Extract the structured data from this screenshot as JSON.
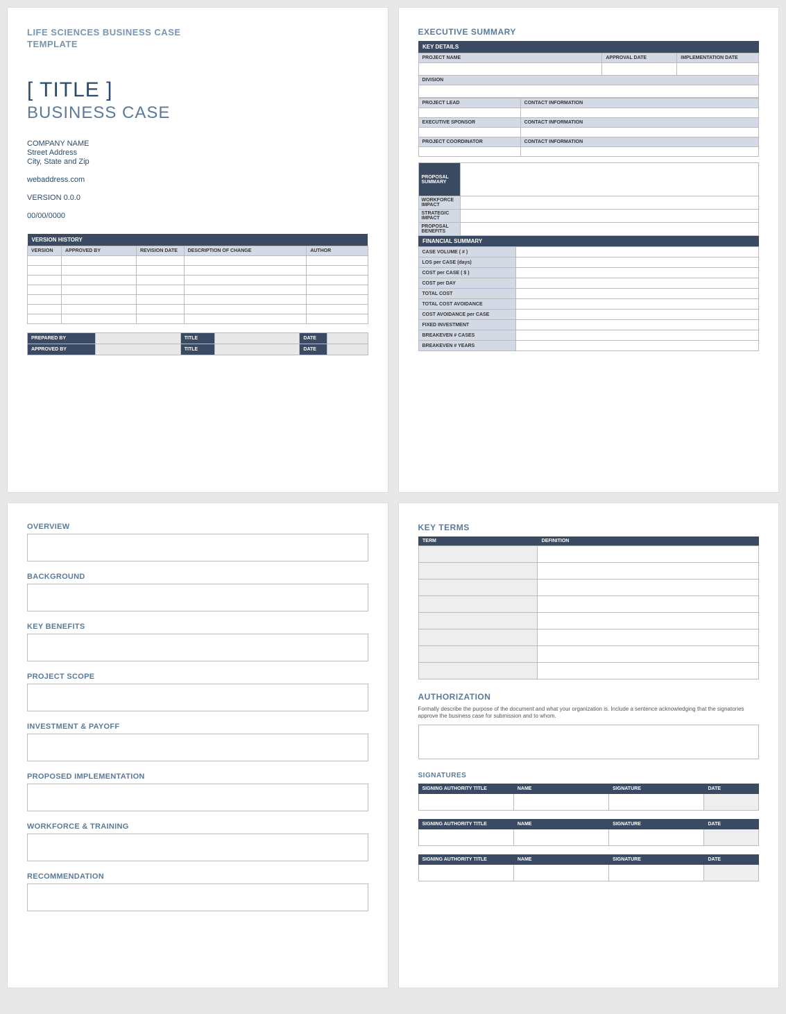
{
  "colors": {
    "header_dark": "#3a4a63",
    "header_light": "#d3dae6",
    "accent_text": "#5a7a99",
    "title_text": "#294a6b",
    "border": "#bbbbbb",
    "page_bg": "#ffffff",
    "body_bg": "#e8e8e8",
    "gray_fill": "#eeeeee"
  },
  "page1": {
    "doc_type_line1": "LIFE SCIENCES BUSINESS CASE",
    "doc_type_line2": "TEMPLATE",
    "title": "[ TITLE ]",
    "subtitle": "BUSINESS CASE",
    "company": "COMPANY NAME",
    "street": "Street Address",
    "city": "City, State and Zip",
    "web": "webaddress.com",
    "version": "VERSION 0.0.0",
    "date": "00/00/0000",
    "vh_title": "VERSION HISTORY",
    "vh_cols": {
      "c1": "VERSION",
      "c2": "APPROVED BY",
      "c3": "REVISION DATE",
      "c4": "DESCRIPTION OF CHANGE",
      "c5": "AUTHOR"
    },
    "vh_row_count": 7,
    "sign": {
      "prepared": "PREPARED BY",
      "approved": "APPROVED BY",
      "title": "TITLE",
      "date": "DATE"
    }
  },
  "page2": {
    "title": "EXECUTIVE SUMMARY",
    "key_details": "KEY DETAILS",
    "row1": {
      "project_name": "PROJECT NAME",
      "approval_date": "APPROVAL DATE",
      "impl_date": "IMPLEMENTATION DATE"
    },
    "division": "DIVISION",
    "lead": "PROJECT LEAD",
    "sponsor": "EXECUTIVE SPONSOR",
    "coord": "PROJECT COORDINATOR",
    "contact": "CONTACT INFORMATION",
    "proposal": {
      "summary": "PROPOSAL SUMMARY",
      "workforce": "WORKFORCE IMPACT",
      "strategic": "STRATEGIC IMPACT",
      "benefits": "PROPOSAL BENEFITS"
    },
    "fin_title": "FINANCIAL SUMMARY",
    "fin_rows": [
      "CASE VOLUME ( # )",
      "LOS per CASE (days)",
      "COST per CASE ( $ )",
      "COST per DAY",
      "TOTAL COST",
      "TOTAL COST AVOIDANCE",
      "COST AVOIDANCE per CASE",
      "FIXED INVESTMENT",
      "BREAKEVEN # CASES",
      "BREAKEVEN # YEARS"
    ]
  },
  "page3": {
    "sections": [
      "OVERVIEW",
      "BACKGROUND",
      "KEY BENEFITS",
      "PROJECT SCOPE",
      "INVESTMENT & PAYOFF",
      "PROPOSED IMPLEMENTATION",
      "WORKFORCE & TRAINING",
      "RECOMMENDATION"
    ]
  },
  "page4": {
    "key_terms_title": "KEY TERMS",
    "kt_cols": {
      "term": "TERM",
      "def": "DEFINITION"
    },
    "kt_row_count": 8,
    "auth_title": "AUTHORIZATION",
    "auth_desc": "Formally describe the purpose of the document and what your organization is. Include a sentence acknowledging that the signatories approve the business case for submission and to whom.",
    "sig_title": "SIGNATURES",
    "sig_cols": {
      "c1": "SIGNING AUTHORITY TITLE",
      "c2": "NAME",
      "c3": "SIGNATURE",
      "c4": "DATE"
    },
    "sig_block_count": 3
  }
}
